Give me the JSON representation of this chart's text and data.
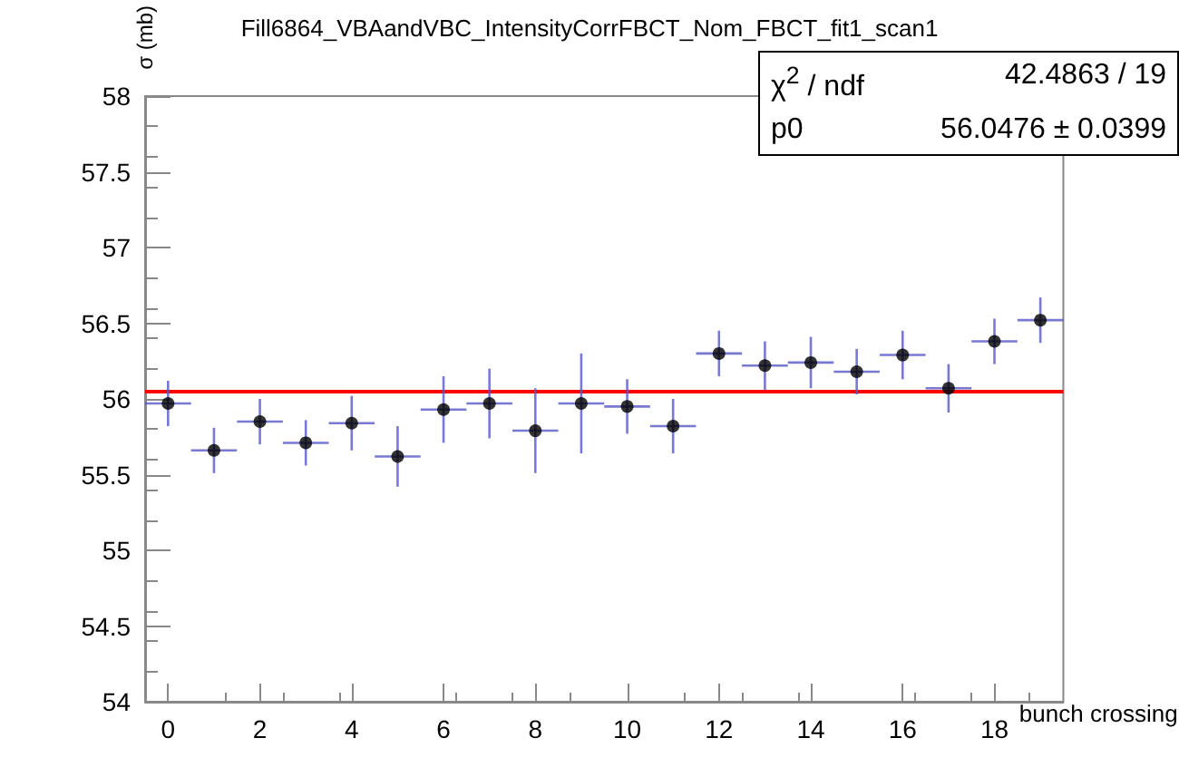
{
  "chart_data": {
    "type": "scatter",
    "title": "Fill6864_VBAandVBC_IntensityCorrFBCT_Nom_FBCT_fit1_scan1",
    "xlabel": "bunch crossing",
    "ylabel": "σ (mb)",
    "annotations": [
      "χ$^{2}$ / ndf",
      "42.4863 / 19",
      "p0",
      "56.0476 ± 0.0399"
    ],
    "x": [
      0,
      1,
      2,
      3,
      4,
      5,
      6,
      7,
      8,
      9,
      10,
      11,
      12,
      13,
      14,
      15,
      16,
      17,
      18,
      19
    ],
    "series": [
      {
        "color": "#000000",
        "values": [
          55.97,
          55.66,
          55.85,
          55.71,
          55.84,
          55.62,
          55.93,
          55.97,
          55.79,
          55.97,
          55.95,
          55.82,
          56.3,
          56.22,
          56.24,
          56.18,
          56.29,
          56.07,
          56.38,
          56.52
        ],
        "errors": [
          0.15,
          0.15,
          0.15,
          0.15,
          0.18,
          0.2,
          0.22,
          0.23,
          0.28,
          0.33,
          0.18,
          0.18,
          0.15,
          0.16,
          0.17,
          0.15,
          0.16,
          0.16,
          0.15,
          0.15
        ],
        "xerrors": [
          0.5,
          0.5,
          0.5,
          0.5,
          0.5,
          0.5,
          0.5,
          0.5,
          0.5,
          0.5,
          0.5,
          0.5,
          0.5,
          0.5,
          0.5,
          0.5,
          0.5,
          0.5,
          0.5,
          0.5
        ]
      }
    ],
    "xlim": [
      -0.5,
      19.5
    ],
    "xticks": [
      0,
      2,
      4,
      6,
      8,
      10,
      12,
      14,
      16,
      18
    ],
    "ylim": [
      54,
      58
    ],
    "yticks": [
      54,
      54.5,
      55,
      55.5,
      56,
      56.5,
      57,
      57.5,
      58
    ],
    "ref_lines": [
      {
        "axis": "y",
        "value": 56.0476,
        "color": "#ff0000"
      }
    ],
    "grid": false,
    "marker": "circle"
  }
}
